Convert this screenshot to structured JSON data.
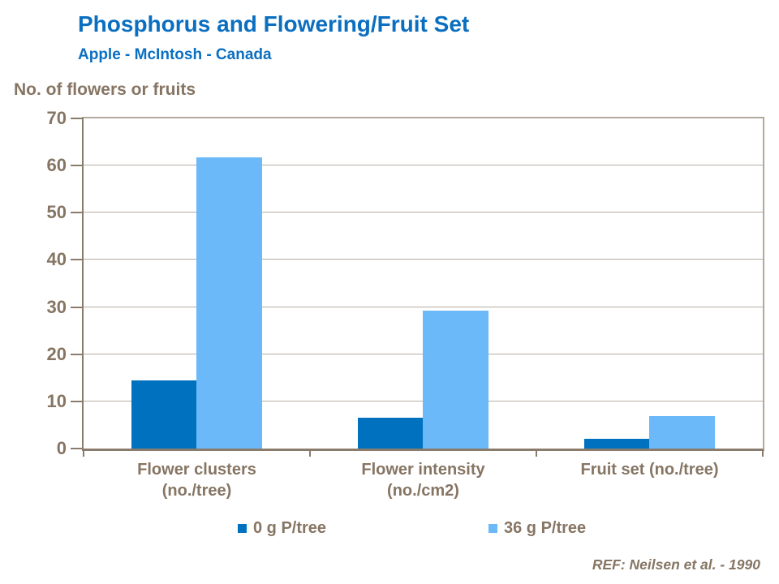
{
  "page": {
    "title": "Phosphorus and Flowering/Fruit Set",
    "subtitle": "Apple - McIntosh - Canada",
    "reference": "REF: Neilsen et al. - 1990"
  },
  "colors": {
    "title_blue": "#0B6FC1",
    "text_brown": "#867563",
    "series1_dark_blue": "#0071BE",
    "series2_light_blue": "#6CB9FA",
    "gridline": "#B6ACA1",
    "plot_border": "#B2A89C",
    "axis": "#8A7C6C"
  },
  "chart_data": {
    "type": "bar",
    "title": "Phosphorus and Flowering/Fruit Set",
    "subtitle": "Apple - McIntosh - Canada",
    "xlabel": "",
    "ylabel": "No. of flowers or fruits",
    "ylim": [
      0,
      70
    ],
    "ytick_step": 10,
    "yticks": [
      0,
      10,
      20,
      30,
      40,
      50,
      60,
      70
    ],
    "grid": true,
    "legend_position": "bottom",
    "categories": [
      "Flower clusters (no./tree)",
      "Flower intensity (no./cm2)",
      "Fruit set (no./tree)"
    ],
    "category_lines": [
      [
        "Flower clusters",
        "(no./tree)"
      ],
      [
        "Flower intensity",
        "(no./cm2)"
      ],
      [
        "Fruit set (no./tree)"
      ]
    ],
    "series": [
      {
        "name": "0 g P/tree",
        "color": "#0071BE",
        "values": [
          14.4,
          6.5,
          2.0
        ]
      },
      {
        "name": "36 g P/tree",
        "color": "#6CB9FA",
        "values": [
          61.8,
          29.2,
          6.8
        ]
      }
    ]
  }
}
